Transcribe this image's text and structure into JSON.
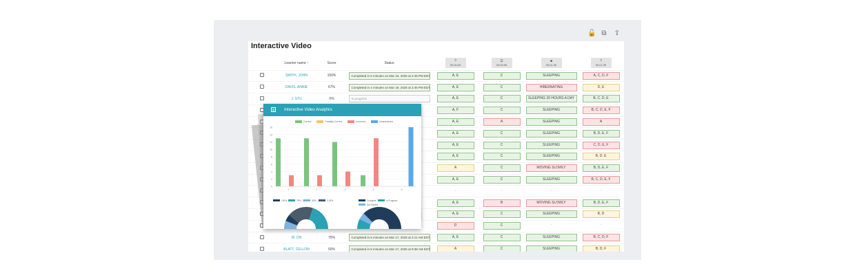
{
  "page_title": "Interactive Video",
  "columns": {
    "learner": "Learner name ↑",
    "score": "Score",
    "status": "Status"
  },
  "questions": [
    {
      "icon": "question-icon",
      "time": "00:00:00"
    },
    {
      "icon": "list-icon",
      "time": "00:00:05"
    },
    {
      "icon": "square-icon",
      "time": "00:01:30"
    },
    {
      "icon": "question-icon",
      "time": "00:01:35"
    }
  ],
  "rows": [
    {
      "name": "SMITH, JOHN",
      "score": "100%",
      "status": "Completed in 5 minutes on Mar 19, 2025 at 2:49 PM EDT",
      "answers": [
        [
          "A, E",
          "g"
        ],
        [
          "C",
          "g"
        ],
        [
          "SLEEPING",
          "g"
        ],
        [
          "A, C, D, F",
          "r"
        ]
      ]
    },
    {
      "name": "DAVIS, ANNIE",
      "score": "67%",
      "status": "Completed in 4 minutes on Mar 19, 2025 at 2:46 PM EDT",
      "answers": [
        [
          "A, E",
          "g"
        ],
        [
          "C",
          "g"
        ],
        [
          "HIBERNATING",
          "r"
        ],
        [
          "D, E",
          "y"
        ]
      ]
    },
    {
      "name": "J. STU",
      "score": "0%",
      "status": "In progress",
      "answers": [
        [
          "A, E",
          "g"
        ],
        [
          "C",
          "g"
        ],
        [
          "SLEEPING 20 HOURS A DAY",
          "g"
        ],
        [
          "B, C, D, E",
          "g"
        ]
      ]
    },
    {
      "name": "",
      "score": "",
      "status": "",
      "answers": [
        [
          "A, F",
          "g"
        ],
        [
          "C",
          "g"
        ],
        [
          "SLEEPING",
          "g"
        ],
        [
          "B, C, D, E, F",
          "r"
        ]
      ]
    },
    {
      "name": "",
      "score": "",
      "status": "",
      "answers": [
        [
          "A, E",
          "g"
        ],
        [
          "A",
          "r"
        ],
        [
          "SLEEPING",
          "g"
        ],
        [
          "A",
          "r"
        ]
      ]
    },
    {
      "name": "",
      "score": "",
      "status": "",
      "answers": [
        [
          "A, E",
          "g"
        ],
        [
          "C",
          "g"
        ],
        [
          "SLEEPING",
          "g"
        ],
        [
          "B, D, E, F",
          "g"
        ]
      ]
    },
    {
      "name": "",
      "score": "",
      "status": "",
      "answers": [
        [
          "A, E",
          "g"
        ],
        [
          "C",
          "g"
        ],
        [
          "SLEEPING",
          "g"
        ],
        [
          "C, D, E, F",
          "r"
        ]
      ]
    },
    {
      "name": "",
      "score": "",
      "status": "",
      "answers": [
        [
          "A, E",
          "g"
        ],
        [
          "C",
          "g"
        ],
        [
          "SLEEPING",
          "g"
        ],
        [
          "B, D, E",
          "y"
        ]
      ]
    },
    {
      "name": "",
      "score": "",
      "status": "",
      "answers": [
        [
          "A",
          "y"
        ],
        [
          "C",
          "g"
        ],
        [
          "MOVING SLOWLY",
          "r"
        ],
        [
          "B, D, E, F",
          "g"
        ]
      ]
    },
    {
      "name": "",
      "score": "",
      "status": "",
      "answers": [
        [
          "A, E",
          "g"
        ],
        [
          "C",
          "g"
        ],
        [
          "SLEEPING",
          "g"
        ],
        [
          "B, C, D, E, F",
          "r"
        ]
      ]
    },
    {
      "name": "",
      "score": "",
      "status": "",
      "answers": [
        [
          "-",
          "n"
        ],
        [
          "-",
          "n"
        ],
        [
          "-",
          "n"
        ],
        [
          "-",
          "n"
        ]
      ]
    },
    {
      "name": "",
      "score": "",
      "status": "",
      "answers": [
        [
          "A, E",
          "g"
        ],
        [
          "B",
          "r"
        ],
        [
          "MOVING SLOWLY",
          "r"
        ],
        [
          "B, D, E, F",
          "g"
        ]
      ]
    },
    {
      "name": "",
      "score": "",
      "status": "",
      "answers": [
        [
          "A, E",
          "g"
        ],
        [
          "C",
          "g"
        ],
        [
          "SLEEPING",
          "g"
        ],
        [
          "B, D",
          "y"
        ]
      ]
    },
    {
      "name": "",
      "score": "",
      "status": "",
      "answers": [
        [
          "D",
          "r"
        ],
        [
          "C",
          "g"
        ],
        [
          "-",
          "n"
        ],
        [
          "-",
          "n"
        ]
      ]
    },
    {
      "name": "M. ON",
      "score": "75%",
      "status": "Completed in 5 minutes on Mar 17, 2025 at 4:11 AM EDT",
      "answers": [
        [
          "A, E",
          "g"
        ],
        [
          "C",
          "g"
        ],
        [
          "SLEEPING",
          "g"
        ],
        [
          "B, C, D, F",
          "r"
        ]
      ]
    },
    {
      "name": "BLATT, CELLON",
      "score": "50%",
      "status": "Completed in 5 minutes on Mar 17, 2025 at 9:38 AM EDT",
      "answers": [
        [
          "A",
          "y"
        ],
        [
          "C",
          "g"
        ],
        [
          "SLEEPING",
          "g"
        ],
        [
          "B, D, F",
          "y"
        ]
      ]
    }
  ],
  "modal": {
    "title": "Interactive Video Analytics",
    "legend": [
      {
        "label": "Correct",
        "color": "#7bc47f"
      },
      {
        "label": "Partially Correct",
        "color": "#f4c56b"
      },
      {
        "label": "Incorrect",
        "color": "#f28782"
      },
      {
        "label": "Unanswered",
        "color": "#5aa9e6"
      }
    ],
    "pie_legend_1": [
      "100%",
      "75% - 50%",
      "50% - 25%",
      "0-25%"
    ],
    "pie_legend_2": [
      "Complete",
      "In Progress",
      "Not Started"
    ]
  },
  "chart_data": {
    "type": "bar",
    "categories": [
      "1",
      "2",
      "3",
      "4",
      "5"
    ],
    "ylim": [
      0,
      16
    ],
    "series": [
      {
        "name": "Correct",
        "values": [
          13,
          13,
          12,
          3,
          0
        ]
      },
      {
        "name": "Partially Correct",
        "values": [
          0,
          0,
          0,
          0,
          0
        ]
      },
      {
        "name": "Incorrect",
        "values": [
          3,
          3,
          4,
          13,
          0
        ]
      },
      {
        "name": "Unanswered",
        "values": [
          0,
          0,
          0,
          0,
          16
        ]
      }
    ]
  }
}
